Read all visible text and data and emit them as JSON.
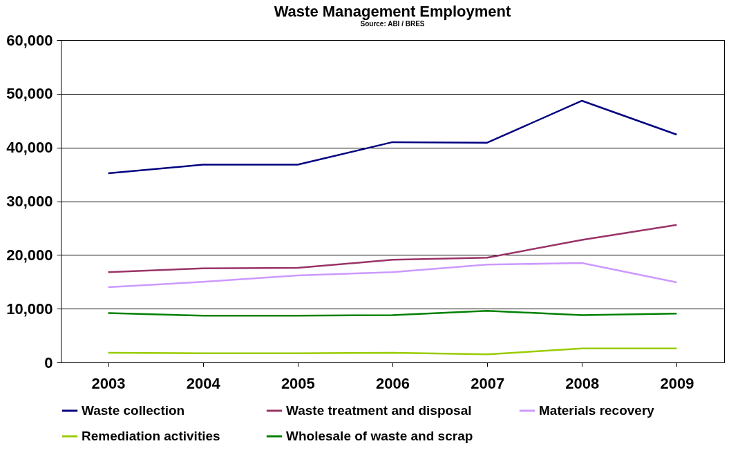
{
  "chart_data": {
    "type": "line",
    "title": "Waste Management Employment",
    "subtitle": "Source: ABI / BRES",
    "categories": [
      "2003",
      "2004",
      "2005",
      "2006",
      "2007",
      "2008",
      "2009"
    ],
    "series": [
      {
        "name": "Waste collection",
        "color": "#000080",
        "values": [
          35200,
          36800,
          36800,
          41000,
          40900,
          48700,
          42400
        ]
      },
      {
        "name": "Waste treatment and disposal",
        "color": "#993366",
        "values": [
          16800,
          17500,
          17600,
          19100,
          19500,
          22800,
          25600
        ]
      },
      {
        "name": "Materials recovery",
        "color": "#cc99ff",
        "values": [
          14000,
          15000,
          16200,
          16800,
          18200,
          18500,
          14900
        ]
      },
      {
        "name": "Remediation activities",
        "color": "#99cc00",
        "values": [
          1800,
          1700,
          1700,
          1800,
          1500,
          2600,
          2600
        ]
      },
      {
        "name": "Wholesale of waste and scrap",
        "color": "#008000",
        "values": [
          9200,
          8700,
          8700,
          8800,
          9600,
          8800,
          9100
        ]
      }
    ],
    "ylim": [
      0,
      60000
    ],
    "yticks": [
      0,
      {
        "value": 10000,
        "label": "10,000"
      },
      {
        "value": 20000,
        "label": "20,000"
      },
      {
        "value": 30000,
        "label": "30,000"
      },
      {
        "value": 40000,
        "label": "40,000"
      },
      {
        "value": 50000,
        "label": "50,000"
      },
      {
        "value": 60000,
        "label": "60,000"
      }
    ],
    "grid": "y",
    "legend": "bottom",
    "marker": "none",
    "line_style": "solid"
  }
}
